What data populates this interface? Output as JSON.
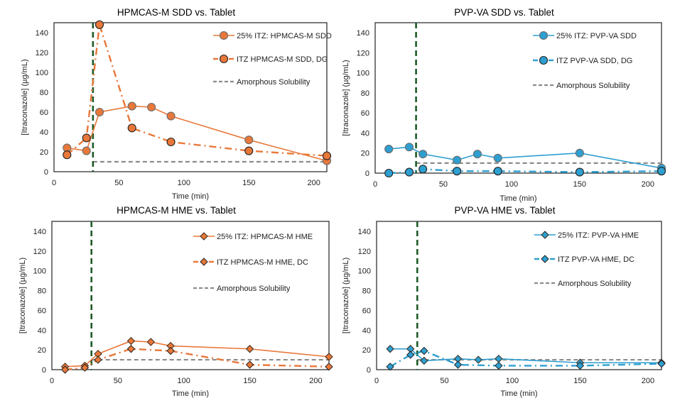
{
  "chart_data": [
    {
      "type": "line",
      "title": "HPMCAS-M SDD vs. Tablet",
      "xlabel": "Time (min)",
      "ylabel": "[Itraconazole] (µg/mL)",
      "xlim": [
        0,
        210
      ],
      "ylim": [
        0,
        150
      ],
      "xticks": [
        0,
        50,
        100,
        150,
        200
      ],
      "yticks": [
        0,
        20,
        40,
        60,
        80,
        100,
        120,
        140
      ],
      "grid": false,
      "legend": "top-right",
      "vline_x": 30,
      "marker": "circle",
      "color": "#E8783A",
      "series": [
        {
          "name": "25% ITZ: HPMCAS-M SDD",
          "style": "solid",
          "x": [
            10,
            25,
            35,
            60,
            75,
            90,
            150,
            210
          ],
          "y": [
            24,
            21,
            60,
            66,
            65,
            56,
            32,
            11
          ]
        },
        {
          "name": "ITZ HPMCAS-M SDD, DG",
          "style": "dashdot",
          "x": [
            10,
            25,
            35,
            60,
            90,
            150,
            210
          ],
          "y": [
            17,
            34,
            148,
            44,
            30,
            21,
            16
          ]
        },
        {
          "name": "Amorphous Solubility",
          "style": "dashed-gray",
          "x": [
            30,
            210
          ],
          "y": [
            10,
            10
          ]
        }
      ]
    },
    {
      "type": "line",
      "title": "PVP-VA SDD vs. Tablet",
      "xlabel": "Time (min)",
      "ylabel": "[Itraconazole] (µg/mL)",
      "xlim": [
        0,
        210
      ],
      "ylim": [
        0,
        150
      ],
      "xticks": [
        0,
        50,
        100,
        150,
        200
      ],
      "yticks": [
        0,
        20,
        40,
        60,
        80,
        100,
        120,
        140
      ],
      "grid": false,
      "legend": "top-right",
      "vline_x": 30,
      "marker": "circle",
      "color": "#2E9FD0",
      "series": [
        {
          "name": "25% ITZ: PVP-VA SDD",
          "style": "solid",
          "x": [
            10,
            25,
            35,
            60,
            75,
            90,
            150,
            210
          ],
          "y": [
            24,
            26,
            19,
            13,
            19,
            15,
            20,
            5
          ]
        },
        {
          "name": "ITZ PVP-VA SDD, DG",
          "style": "dashdot",
          "x": [
            10,
            25,
            35,
            60,
            90,
            150,
            210
          ],
          "y": [
            0,
            1,
            4,
            2,
            2,
            1,
            2
          ]
        },
        {
          "name": "Amorphous Solubility",
          "style": "dashed-gray",
          "x": [
            30,
            210
          ],
          "y": [
            10,
            10
          ]
        }
      ]
    },
    {
      "type": "line",
      "title": "HPMCAS-M HME vs. Tablet",
      "xlabel": "Time (min)",
      "ylabel": "[Itraconazole] (µg/mL)",
      "xlim": [
        0,
        210
      ],
      "ylim": [
        0,
        150
      ],
      "xticks": [
        0,
        50,
        100,
        150,
        200
      ],
      "yticks": [
        0,
        20,
        40,
        60,
        80,
        100,
        120,
        140
      ],
      "grid": false,
      "legend": "top-right",
      "vline_x": 30,
      "marker": "diamond",
      "color": "#E8783A",
      "series": [
        {
          "name": "25% ITZ: HPMCAS-M HME",
          "style": "solid",
          "x": [
            10,
            25,
            35,
            60,
            75,
            90,
            150,
            210
          ],
          "y": [
            3,
            4,
            16,
            29,
            28,
            24,
            21,
            13
          ]
        },
        {
          "name": "ITZ HPMCAS-M HME, DC",
          "style": "dashdot",
          "x": [
            10,
            25,
            35,
            60,
            90,
            150,
            210
          ],
          "y": [
            0,
            2,
            10,
            21,
            19,
            5,
            3
          ]
        },
        {
          "name": "Amorphous Solubility",
          "style": "dashed-gray",
          "x": [
            30,
            210
          ],
          "y": [
            10,
            10
          ]
        }
      ]
    },
    {
      "type": "line",
      "title": "PVP-VA HME vs. Tablet",
      "xlabel": "Time (min)",
      "ylabel": "[Itraconazole] (µg/mL)",
      "xlim": [
        0,
        210
      ],
      "ylim": [
        0,
        150
      ],
      "xticks": [
        0,
        50,
        100,
        150,
        200
      ],
      "yticks": [
        0,
        20,
        40,
        60,
        80,
        100,
        120,
        140
      ],
      "grid": false,
      "legend": "top-right",
      "vline_x": 30,
      "marker": "diamond",
      "color": "#2E9FD0",
      "series": [
        {
          "name": "25% ITZ: PVP-VA HME",
          "style": "solid",
          "x": [
            10,
            25,
            35,
            60,
            75,
            90,
            150,
            210
          ],
          "y": [
            21,
            21,
            9,
            11,
            10,
            11,
            7,
            7
          ]
        },
        {
          "name": "ITZ PVP-VA HME, DC",
          "style": "dashdot",
          "x": [
            10,
            25,
            35,
            60,
            90,
            150,
            210
          ],
          "y": [
            3,
            15,
            19,
            5,
            4,
            4,
            6
          ]
        },
        {
          "name": "Amorphous Solubility",
          "style": "dashed-gray",
          "x": [
            30,
            210
          ],
          "y": [
            10,
            10
          ]
        }
      ]
    }
  ]
}
